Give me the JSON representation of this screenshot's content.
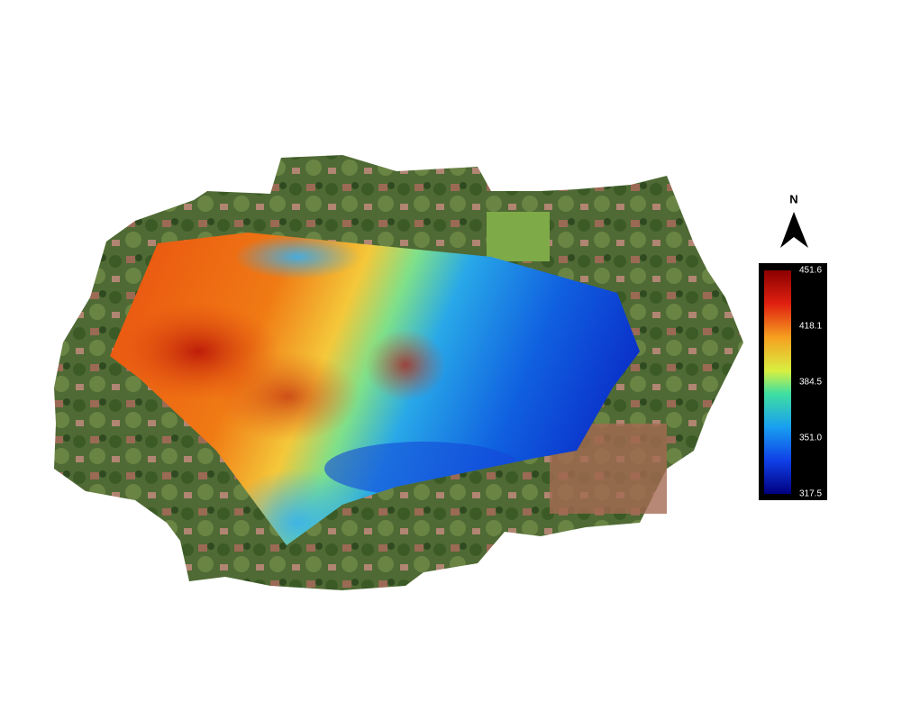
{
  "north_arrow": {
    "label": "N"
  },
  "legend": {
    "labels": [
      "451.6",
      "418.1",
      "384.5",
      "351.0",
      "317.5"
    ]
  }
}
